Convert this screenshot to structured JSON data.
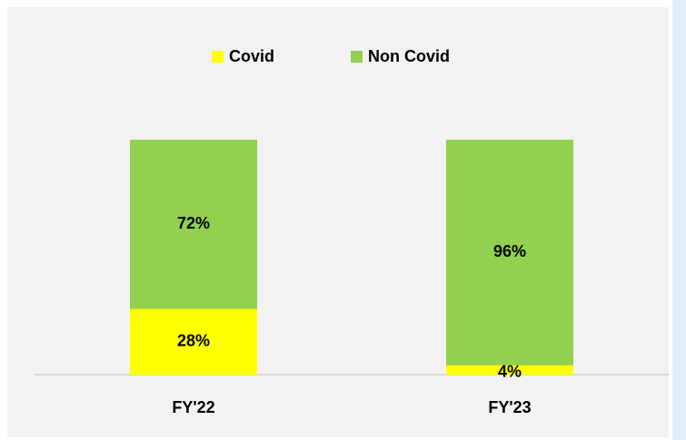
{
  "chart_data": {
    "type": "stacked_bar",
    "categories": [
      "FY'22",
      "FY'23"
    ],
    "series": [
      {
        "name": "Covid",
        "color": "#ffff00",
        "values": [
          28,
          4
        ],
        "value_labels": [
          "28%",
          "4%"
        ]
      },
      {
        "name": "Non Covid",
        "color": "#92d050",
        "values": [
          72,
          96
        ],
        "value_labels": [
          "72%",
          "96%"
        ]
      }
    ],
    "ylim": [
      0,
      100
    ],
    "legend": "top"
  }
}
